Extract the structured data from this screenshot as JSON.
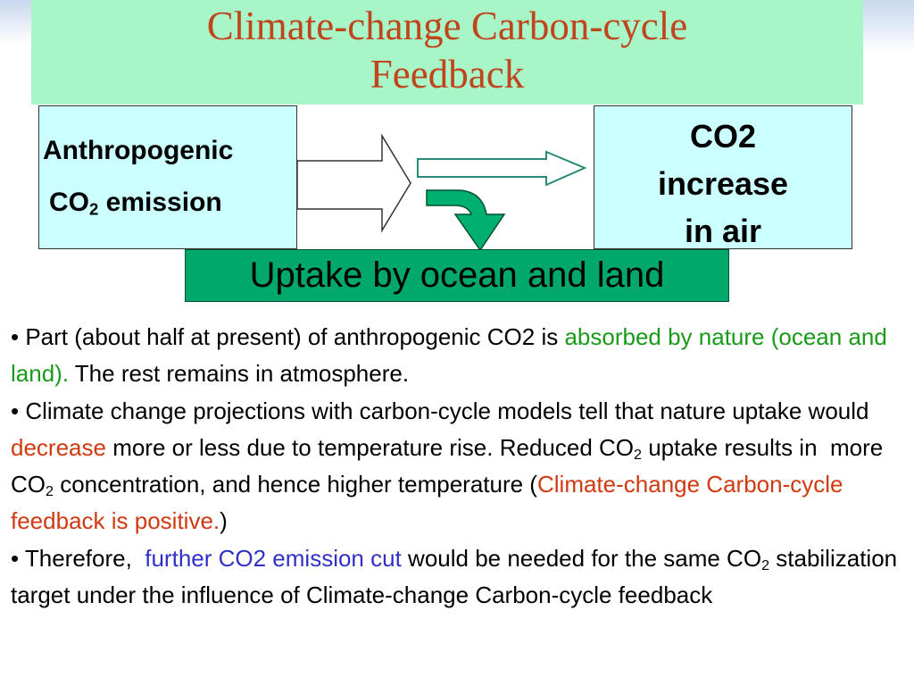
{
  "title": "Climate-change Carbon-cycle Feedback",
  "diagram": {
    "source": {
      "line1": "Anthropogenic",
      "line2": [
        "CO",
        "2",
        " emission"
      ]
    },
    "target": {
      "lines": [
        "CO2",
        "increase",
        "in air"
      ]
    },
    "sink": "Uptake by ocean and land"
  },
  "bullets": [
    [
      "• Part (about half at present) of anthropogenic CO2 is ",
      "absorbed by nature (ocean and land).",
      " The rest remains in atmosphere."
    ],
    [
      "• Climate change projections with carbon-cycle models tell that nature uptake would ",
      "decrease",
      " more or less due to temperature rise. Reduced CO",
      "2",
      " uptake results in  more CO",
      "2",
      " concentration, and hence higher temperature (",
      "Climate-change Carbon-cycle feedback is positive.",
      ")"
    ],
    [
      "• Therefore,  ",
      "further CO2 emission cut",
      " would be needed for the same CO",
      "2",
      " stabilization target under the influence of Climate-change Carbon-cycle feedback"
    ]
  ]
}
